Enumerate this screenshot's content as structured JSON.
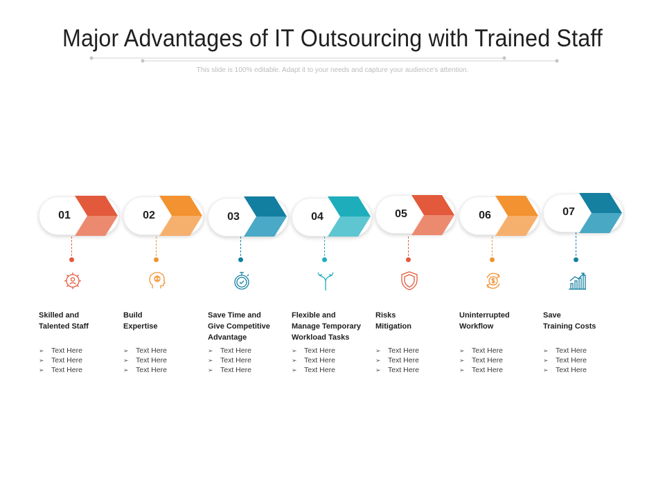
{
  "title": "Major Advantages of IT Outsourcing with Trained Staff",
  "subtitle": "This slide is 100% editable. Adapt it to your needs and capture your audience's attention.",
  "colors": {
    "orange_red": "#e25a3b",
    "orange_red_light": "#ec8a70",
    "orange": "#f39230",
    "orange_light": "#f6b06e",
    "teal_dark": "#137fa0",
    "teal_dark_light": "#4aa9c6",
    "teal": "#1eaebb",
    "teal_light": "#5dc6d1",
    "blue_teal": "#1580a0",
    "blue_teal_light": "#49a8c4"
  },
  "bullet_marker": "➢",
  "steps": [
    {
      "number": "01",
      "label": "Skilled and\nTalented Staff",
      "icon": "gear-person-icon",
      "bullets": [
        "Text Here",
        "Text Here",
        "Text Here"
      ]
    },
    {
      "number": "02",
      "label": "Build\nExpertise",
      "icon": "brain-head-icon",
      "bullets": [
        "Text Here",
        "Text Here",
        "Text Here"
      ]
    },
    {
      "number": "03",
      "label": "Save Time and\nGive Competitive\nAdvantage",
      "icon": "stopwatch-icon",
      "bullets": [
        "Text Here",
        "Text Here",
        "Text Here"
      ]
    },
    {
      "number": "04",
      "label": "Flexible and\nManage Temporary\nWorkload Tasks",
      "icon": "split-arrows-icon",
      "bullets": [
        "Text Here",
        "Text Here",
        "Text Here"
      ]
    },
    {
      "number": "05",
      "label": "Risks\nMitigation",
      "icon": "shield-icon",
      "bullets": [
        "Text Here",
        "Text Here",
        "Text Here"
      ]
    },
    {
      "number": "06",
      "label": "Uninterrupted\nWorkflow",
      "icon": "dollar-cycle-icon",
      "bullets": [
        "Text Here",
        "Text Here",
        "Text Here"
      ]
    },
    {
      "number": "07",
      "label": "Save\nTraining Costs",
      "icon": "bar-chart-growth-icon",
      "bullets": [
        "Text Here",
        "Text Here",
        "Text Here"
      ]
    }
  ]
}
